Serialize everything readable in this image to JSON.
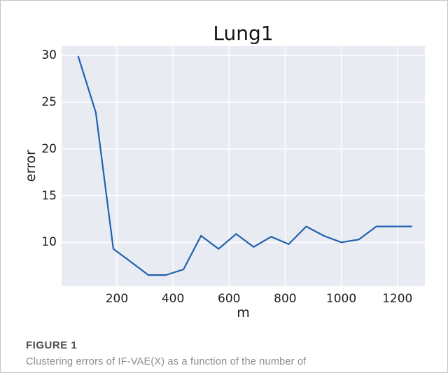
{
  "chart_data": {
    "type": "line",
    "title": "Lung1",
    "xlabel": "m",
    "ylabel": "error",
    "x": [
      62.5,
      125,
      187.5,
      250,
      312.5,
      375,
      437.5,
      500,
      562.5,
      625,
      687.5,
      750,
      812.5,
      875,
      937.5,
      1000,
      1062.5,
      1125,
      1187.5,
      1250
    ],
    "y": [
      29.9,
      23.9,
      9.3,
      7.9,
      6.5,
      6.5,
      7.1,
      10.7,
      9.3,
      10.9,
      9.5,
      10.6,
      9.8,
      11.7,
      10.7,
      10.0,
      10.3,
      11.7,
      11.7,
      11.7
    ],
    "xticks": [
      200,
      400,
      600,
      800,
      1000,
      1200
    ],
    "yticks": [
      10,
      15,
      20,
      25,
      30
    ],
    "xlim": [
      3,
      1298
    ],
    "ylim": [
      5.3,
      31.0
    ],
    "grid": true,
    "legend_position": "none",
    "line_color": "#2061b0",
    "plot_bg_color": "#e9ebf2",
    "grid_color": "#ffffff"
  },
  "caption": {
    "label": "FIGURE 1",
    "text": "Clustering errors of IF-VAE(X) as a function of the number of"
  }
}
